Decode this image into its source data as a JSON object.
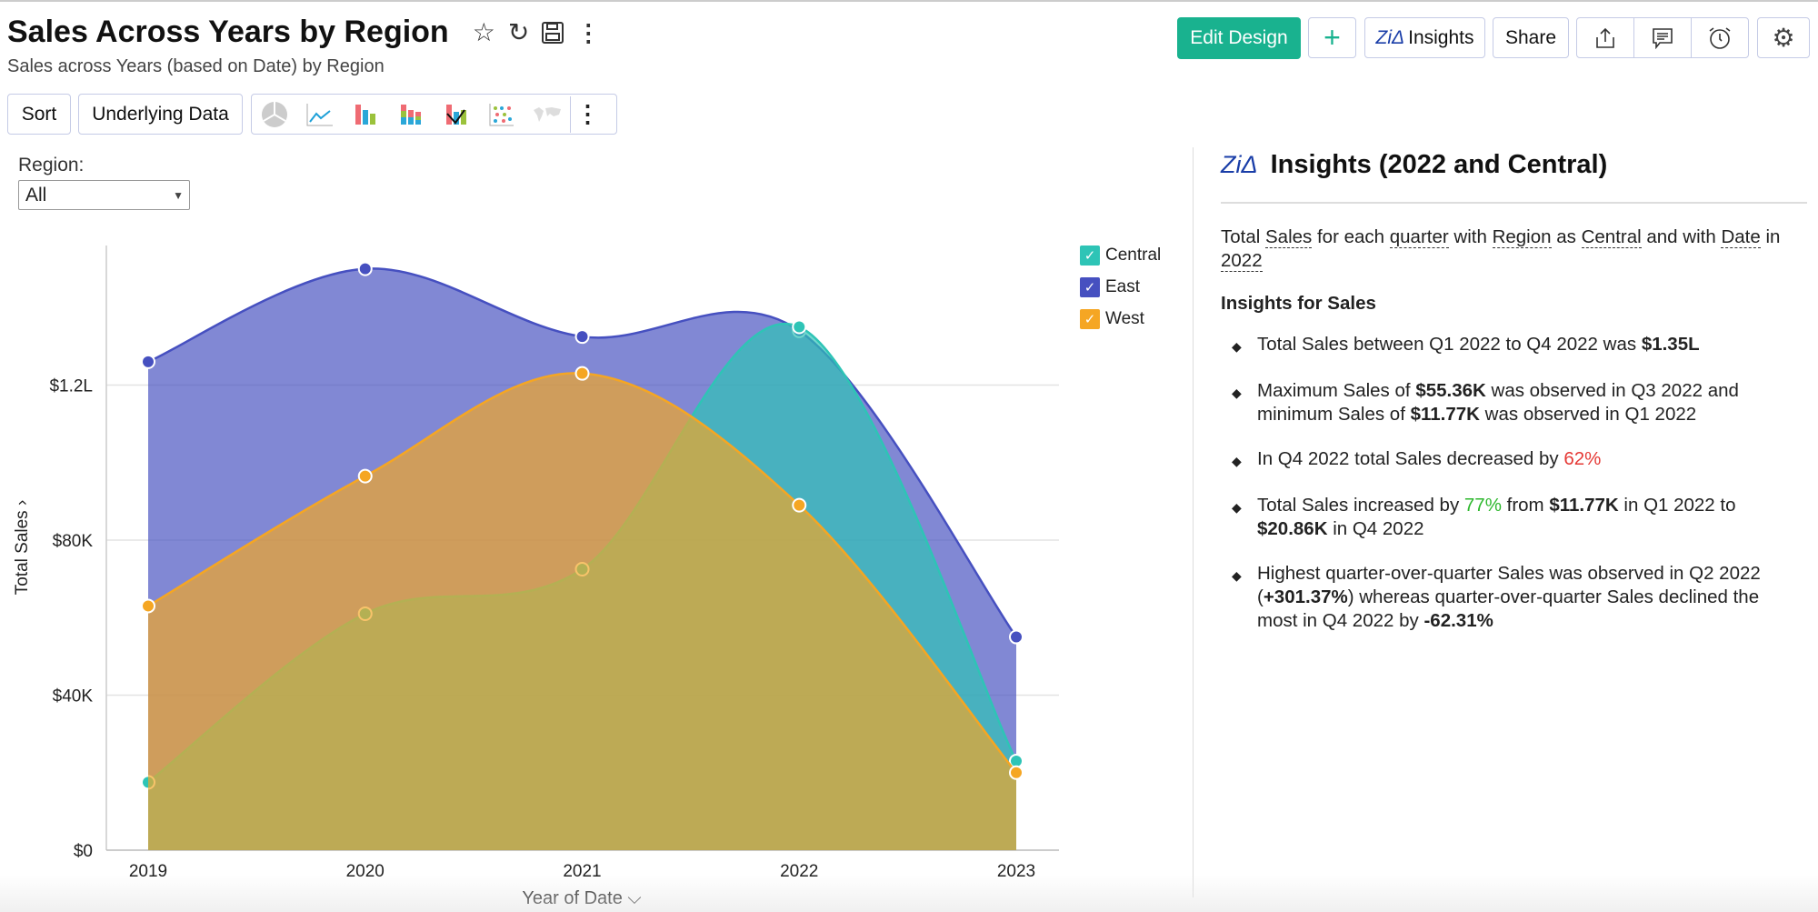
{
  "header": {
    "title": "Sales Across Years by Region",
    "subtitle": "Sales across Years (based on Date) by Region",
    "icons": [
      "star-icon",
      "refresh-icon",
      "save-icon",
      "more-vertical-icon"
    ]
  },
  "toolbar": {
    "sort": "Sort",
    "underlying": "Underlying Data",
    "chart_types": [
      "pie-chart-icon",
      "line-chart-icon",
      "bar-chart-icon",
      "stacked-bar-icon",
      "combo-chart-icon",
      "scatter-icon",
      "map-icon"
    ]
  },
  "actions": {
    "edit": "Edit Design",
    "add": "+",
    "insights": "Insights",
    "share": "Share"
  },
  "filter": {
    "label": "Region:",
    "value": "All"
  },
  "colors": {
    "accent": "#19b28f",
    "central": "#2ec4b6",
    "east": "#4650c0",
    "west": "#f5a623",
    "zia": "#1a3ea8"
  },
  "chart_data": {
    "type": "area",
    "xlabel": "Year of Date",
    "ylabel": "Total Sales",
    "x": [
      "2019",
      "2020",
      "2021",
      "2022",
      "2023"
    ],
    "yticks": [
      {
        "v": 0,
        "label": "$0"
      },
      {
        "v": 40000,
        "label": "$40K"
      },
      {
        "v": 80000,
        "label": "$80K"
      },
      {
        "v": 120000,
        "label": "$1.2L"
      }
    ],
    "ylim": [
      0,
      156000
    ],
    "grid": true,
    "legend": "top-right",
    "series": [
      {
        "name": "East",
        "color": "#4650c0",
        "values": [
          126000,
          150000,
          132500,
          134000,
          55000
        ]
      },
      {
        "name": "Central",
        "color": "#2ec4b6",
        "values": [
          17500,
          61000,
          72500,
          135000,
          23000
        ]
      },
      {
        "name": "West",
        "color": "#f5a623",
        "values": [
          63000,
          96500,
          123000,
          89000,
          20000
        ]
      }
    ],
    "legend_entries": [
      "Central",
      "East",
      "West"
    ]
  },
  "insights": {
    "title": "Insights (2022 and Central)",
    "desc": {
      "p1": "Total ",
      "sales": "Sales",
      "p2": " for each ",
      "quarter": "quarter",
      "p3": " with ",
      "region": "Region",
      "p4": " as ",
      "central": "Central",
      "p5": " and with ",
      "date": "Date",
      "p6": " in ",
      "year": "2022"
    },
    "subheading": "Insights for Sales",
    "b1": {
      "t1": "Total Sales between Q1 2022 to Q4 2022 was ",
      "v1": "$1.35L"
    },
    "b2": {
      "t1": "Maximum Sales of ",
      "v1": "$55.36K",
      "t2": " was observed in Q3 2022 and minimum Sales of ",
      "v2": "$11.77K",
      "t3": " was observed in Q1 2022"
    },
    "b3": {
      "t1": "In Q4 2022 total Sales decreased by ",
      "v1": "62%"
    },
    "b4": {
      "t1": "Total Sales increased by ",
      "v1": "77%",
      "t2": " from ",
      "v2": "$11.77K",
      "t3": " in Q1 2022 to ",
      "v3": "$20.86K",
      "t4": " in Q4 2022"
    },
    "b5": {
      "t1": "Highest quarter-over-quarter Sales was observed in Q2 2022 (",
      "v1": "+301.37%",
      "t2": ") whereas quarter-over-quarter Sales declined the most in Q4 2022 by ",
      "v2": "-62.31%"
    }
  }
}
